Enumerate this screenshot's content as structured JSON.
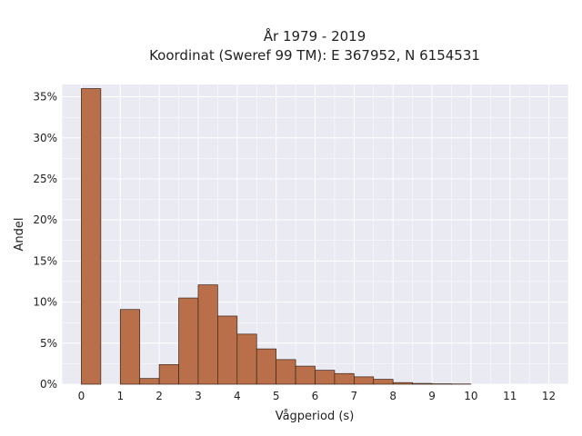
{
  "chart_data": {
    "type": "bar",
    "title_lines": [
      "År 1979 - 2019",
      "Koordinat (Sweref 99 TM): E 367952, N 6154531"
    ],
    "xlabel": "Vågperiod (s)",
    "ylabel": "Andel",
    "xlim": [
      -0.5,
      12.5
    ],
    "ylim": [
      0,
      0.365
    ],
    "x_ticks": [
      0,
      1,
      2,
      3,
      4,
      5,
      6,
      7,
      8,
      9,
      10,
      11,
      12
    ],
    "y_ticks": [
      0,
      0.05,
      0.1,
      0.15,
      0.2,
      0.25,
      0.3,
      0.35
    ],
    "y_tick_labels": [
      "0%",
      "5%",
      "10%",
      "15%",
      "20%",
      "25%",
      "30%",
      "35%"
    ],
    "grid": true,
    "bin_width": 0.5,
    "bins": [
      {
        "start": 0.0,
        "value": 0.36
      },
      {
        "start": 1.0,
        "value": 0.091
      },
      {
        "start": 1.5,
        "value": 0.007
      },
      {
        "start": 2.0,
        "value": 0.024
      },
      {
        "start": 2.5,
        "value": 0.105
      },
      {
        "start": 3.0,
        "value": 0.121
      },
      {
        "start": 3.5,
        "value": 0.083
      },
      {
        "start": 4.0,
        "value": 0.061
      },
      {
        "start": 4.5,
        "value": 0.043
      },
      {
        "start": 5.0,
        "value": 0.03
      },
      {
        "start": 5.5,
        "value": 0.022
      },
      {
        "start": 6.0,
        "value": 0.017
      },
      {
        "start": 6.5,
        "value": 0.013
      },
      {
        "start": 7.0,
        "value": 0.009
      },
      {
        "start": 7.5,
        "value": 0.006
      },
      {
        "start": 8.0,
        "value": 0.002
      },
      {
        "start": 8.5,
        "value": 0.001
      },
      {
        "start": 9.0,
        "value": 0.0005
      },
      {
        "start": 9.5,
        "value": 0.0003
      }
    ],
    "colors": {
      "bar_fill": "#b9704a",
      "bar_stroke": "#3a2418",
      "plot_bg": "#eaeaf2",
      "grid": "#ffffff"
    }
  }
}
